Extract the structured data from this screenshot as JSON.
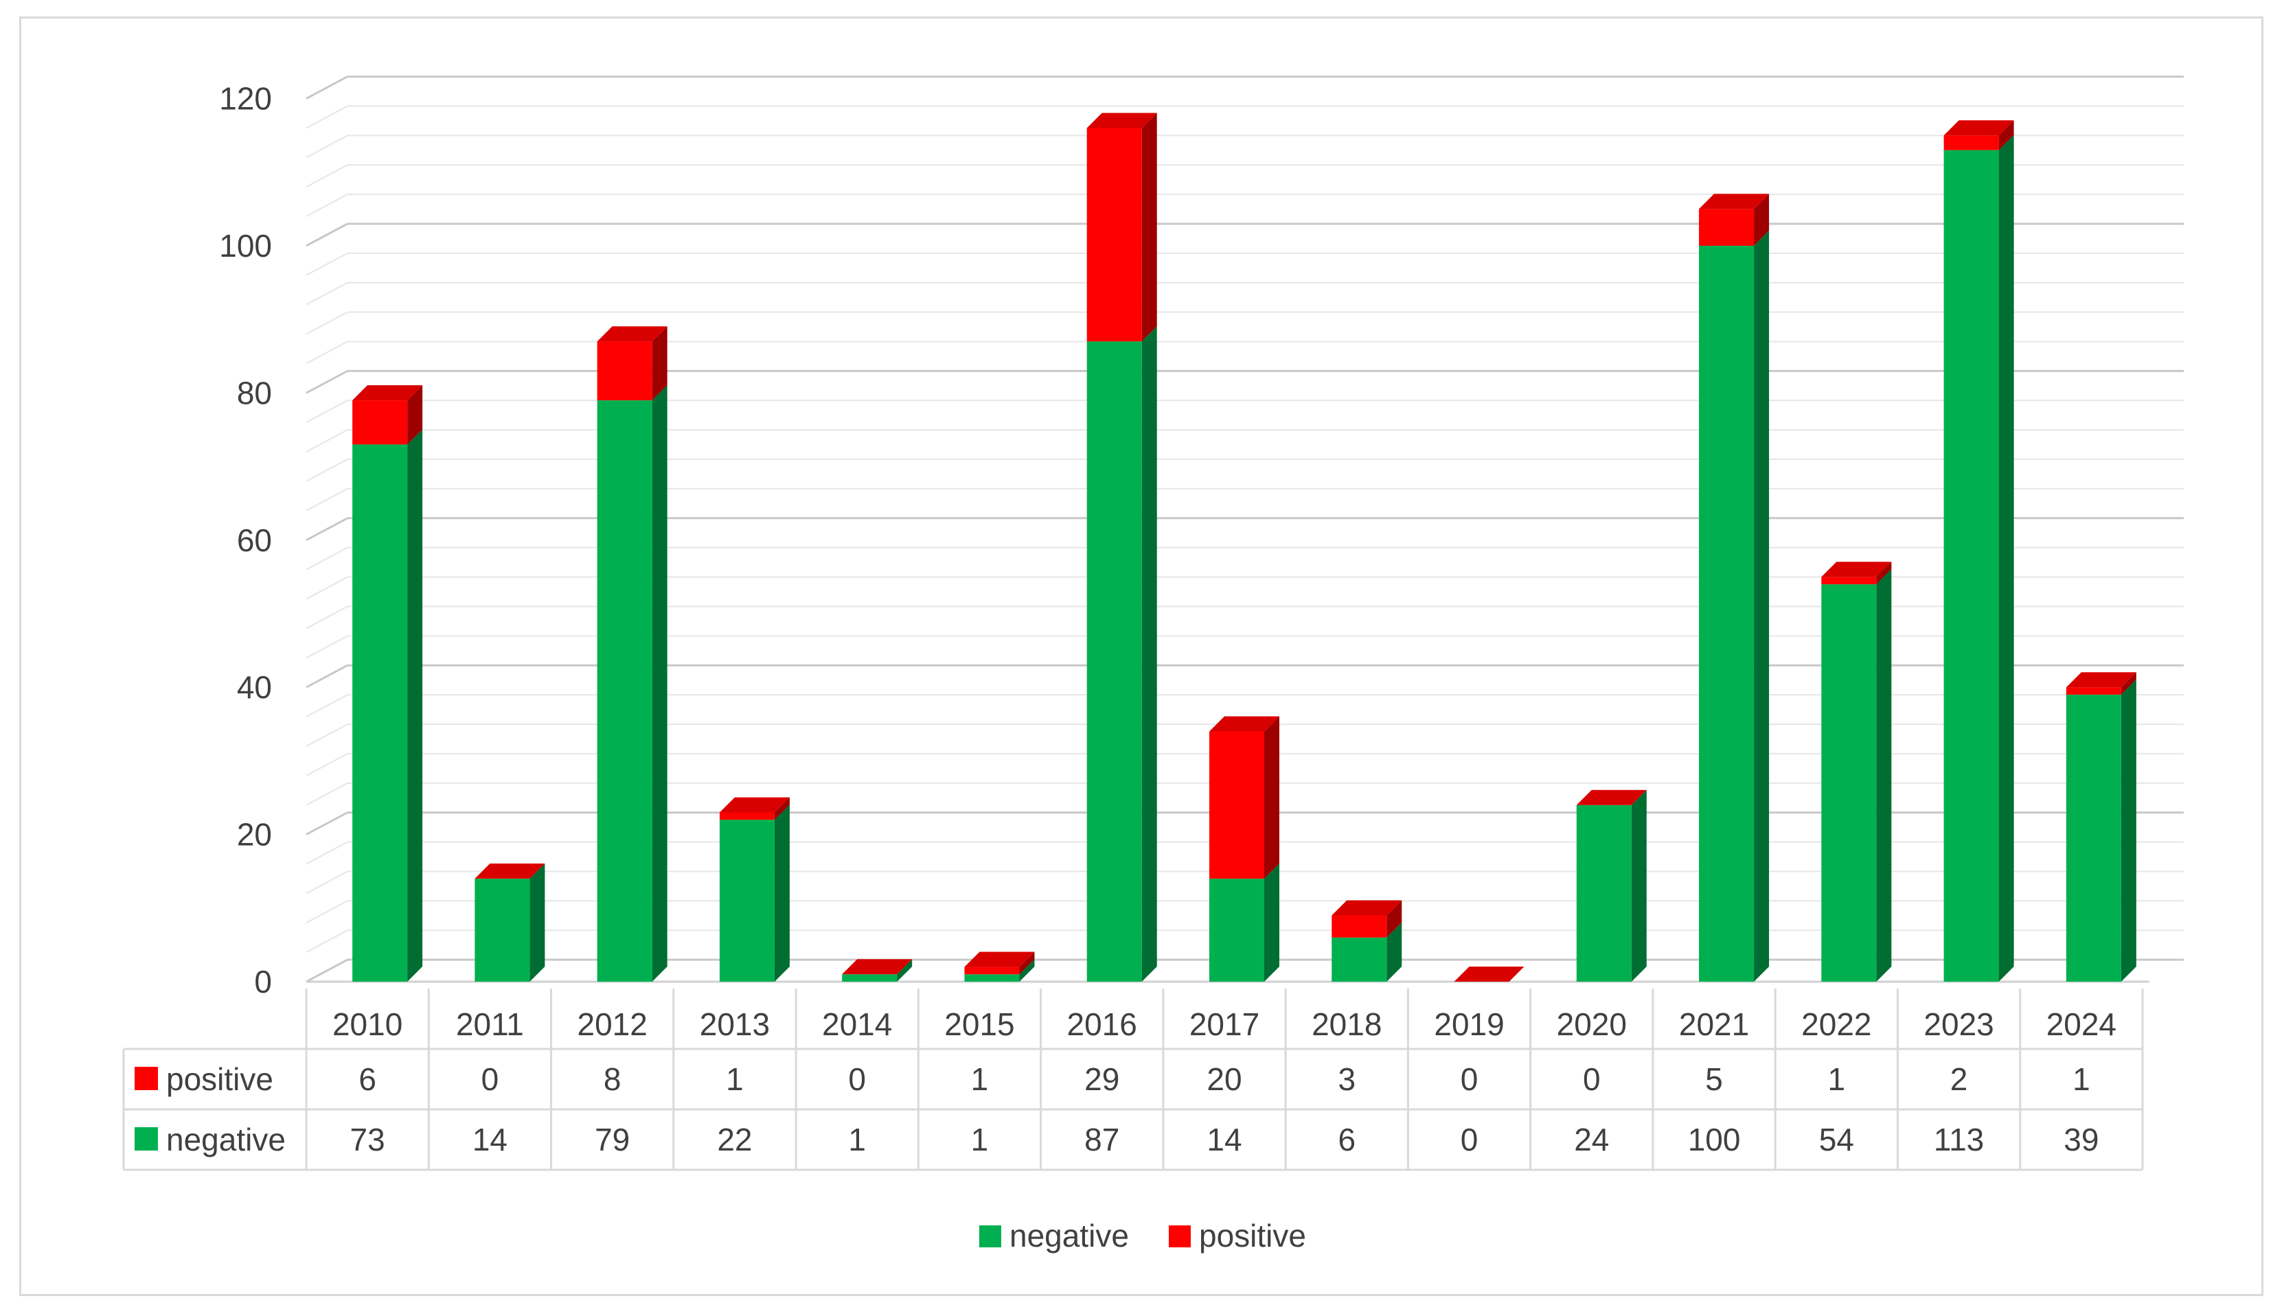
{
  "chart_data": {
    "type": "bar",
    "stacked": true,
    "three_d": true,
    "categories": [
      "2010",
      "2011",
      "2012",
      "2013",
      "2014",
      "2015",
      "2016",
      "2017",
      "2018",
      "2019",
      "2020",
      "2021",
      "2022",
      "2023",
      "2024"
    ],
    "series": [
      {
        "name": "negative",
        "color": "#00b050",
        "values": [
          73,
          14,
          79,
          22,
          1,
          1,
          87,
          14,
          6,
          0,
          24,
          100,
          54,
          113,
          39
        ]
      },
      {
        "name": "positive",
        "color": "#ff0000",
        "values": [
          6,
          0,
          8,
          1,
          0,
          1,
          29,
          20,
          3,
          0,
          0,
          5,
          1,
          2,
          1
        ]
      }
    ],
    "yticks": [
      "0",
      "20",
      "40",
      "60",
      "80",
      "100",
      "120"
    ],
    "ylim": [
      0,
      120
    ],
    "grid": true,
    "data_table": {
      "rows": [
        {
          "series": "positive",
          "label": "positive",
          "values": [
            "6",
            "0",
            "8",
            "1",
            "0",
            "1",
            "29",
            "20",
            "3",
            "0",
            "0",
            "5",
            "1",
            "2",
            "1"
          ]
        },
        {
          "series": "negative",
          "label": "negative",
          "values": [
            "73",
            "14",
            "79",
            "22",
            "1",
            "1",
            "87",
            "14",
            "6",
            "0",
            "24",
            "100",
            "54",
            "113",
            "39"
          ]
        }
      ]
    },
    "legend": {
      "placement": "bottom",
      "entries": [
        {
          "label": "negative",
          "color": "#00b050"
        },
        {
          "label": "positive",
          "color": "#ff0000"
        }
      ]
    }
  }
}
